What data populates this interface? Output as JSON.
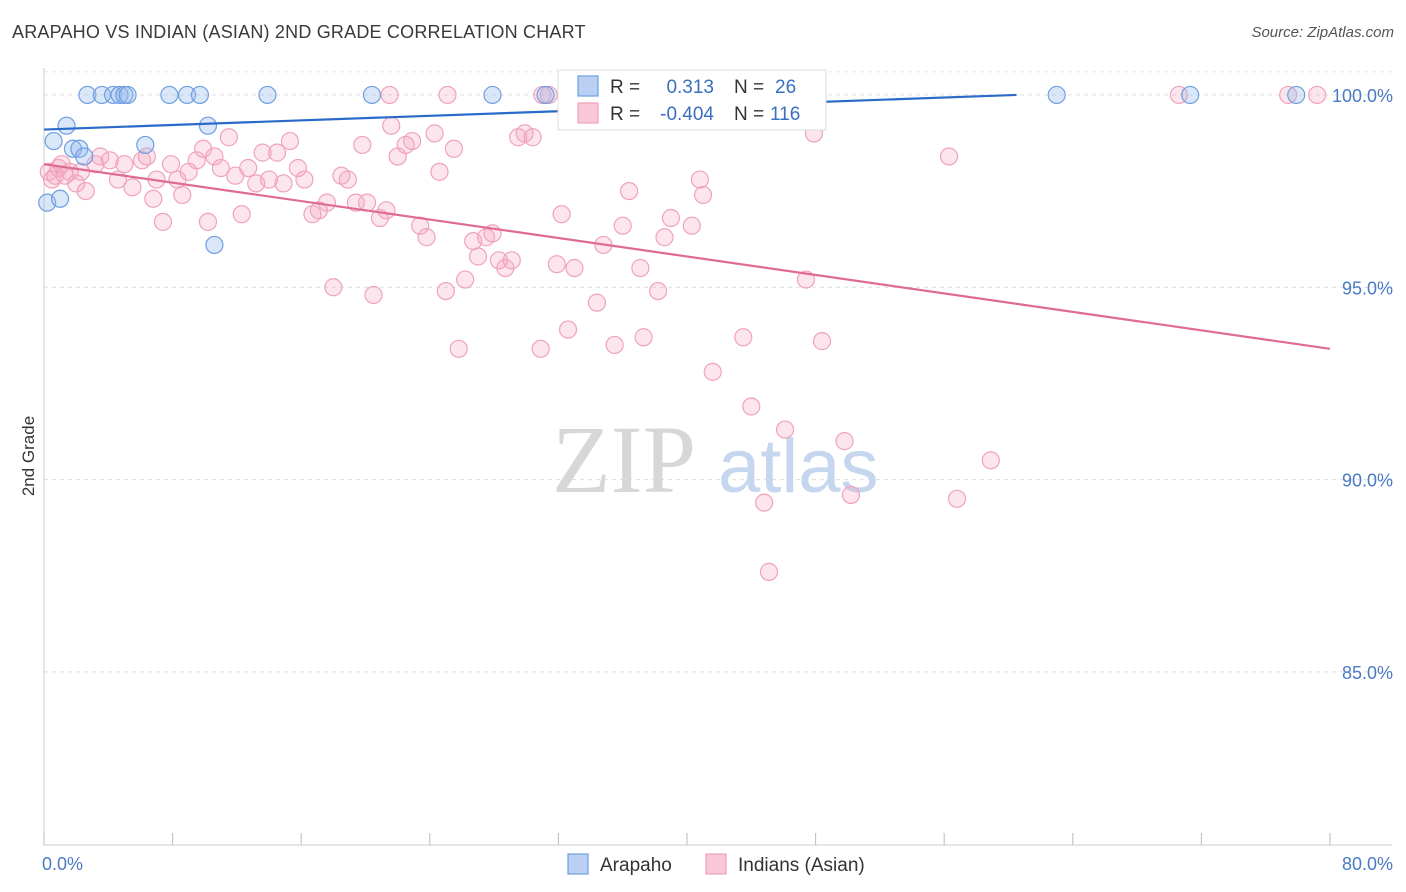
{
  "title": "ARAPAHO VS INDIAN (ASIAN) 2ND GRADE CORRELATION CHART",
  "source": "Source: ZipAtlas.com",
  "watermark": {
    "part1": "ZIP",
    "part2": "atlas"
  },
  "colors": {
    "arapaho": "#6f9fe0",
    "indian": "#f1a0bb",
    "arapaho_line": "#2a6ac8",
    "indian_line": "#e06a96"
  },
  "legend_top": {
    "rows": [
      {
        "r_label": "R =",
        "r_value": "0.313",
        "n_label": "N =",
        "n_value": "26"
      },
      {
        "r_label": "R =",
        "r_value": "-0.404",
        "n_label": "N =",
        "n_value": "116"
      }
    ]
  },
  "chart_data": {
    "type": "scatter",
    "title": "ARAPAHO VS INDIAN (ASIAN) 2ND GRADE CORRELATION CHART",
    "xlabel": "",
    "ylabel": "2nd Grade",
    "xlim": [
      0,
      80
    ],
    "ylim": [
      80.5,
      100.7
    ],
    "x_tick_labels": [
      {
        "value": 0,
        "label": "0.0%"
      },
      {
        "value": 80,
        "label": "80.0%"
      }
    ],
    "y_tick_labels": [
      {
        "value": 100,
        "label": "100.0%"
      },
      {
        "value": 95,
        "label": "95.0%"
      },
      {
        "value": 90,
        "label": "90.0%"
      },
      {
        "value": 85,
        "label": "85.0%"
      }
    ],
    "grid": true,
    "legend_position": "bottom-center",
    "series": [
      {
        "name": "Arapaho",
        "r": 0.313,
        "n": 26,
        "trend": {
          "x": [
            0,
            60.5
          ],
          "y": [
            99.1,
            100.0
          ]
        },
        "points": [
          [
            0.2,
            97.2
          ],
          [
            0.6,
            98.8
          ],
          [
            1.0,
            97.3
          ],
          [
            1.4,
            99.2
          ],
          [
            1.8,
            98.6
          ],
          [
            2.2,
            98.6
          ],
          [
            2.5,
            98.4
          ],
          [
            2.7,
            100.0
          ],
          [
            3.6,
            100.0
          ],
          [
            4.3,
            100.0
          ],
          [
            4.7,
            100.0
          ],
          [
            5.0,
            100.0
          ],
          [
            5.2,
            100.0
          ],
          [
            6.3,
            98.7
          ],
          [
            7.8,
            100.0
          ],
          [
            8.9,
            100.0
          ],
          [
            9.7,
            100.0
          ],
          [
            10.2,
            99.2
          ],
          [
            10.6,
            96.1
          ],
          [
            13.9,
            100.0
          ],
          [
            20.4,
            100.0
          ],
          [
            27.9,
            100.0
          ],
          [
            31.2,
            100.0
          ],
          [
            63.0,
            100.0
          ],
          [
            71.3,
            100.0
          ],
          [
            77.9,
            100.0
          ]
        ]
      },
      {
        "name": "Indians (Asian)",
        "r": -0.404,
        "n": 116,
        "trend": {
          "x": [
            0,
            80
          ],
          "y": [
            98.2,
            93.4
          ]
        },
        "points": [
          [
            0.3,
            98.0
          ],
          [
            0.5,
            97.8
          ],
          [
            0.7,
            97.9
          ],
          [
            0.9,
            98.1
          ],
          [
            1.1,
            98.2
          ],
          [
            1.3,
            97.9
          ],
          [
            1.6,
            98.0
          ],
          [
            2.0,
            97.7
          ],
          [
            2.3,
            98.0
          ],
          [
            2.6,
            97.5
          ],
          [
            3.2,
            98.2
          ],
          [
            3.5,
            98.4
          ],
          [
            4.1,
            98.3
          ],
          [
            4.6,
            97.8
          ],
          [
            5.0,
            98.2
          ],
          [
            5.5,
            97.6
          ],
          [
            6.1,
            98.3
          ],
          [
            6.4,
            98.4
          ],
          [
            6.8,
            97.3
          ],
          [
            7.0,
            97.8
          ],
          [
            7.4,
            96.7
          ],
          [
            7.9,
            98.2
          ],
          [
            8.3,
            97.8
          ],
          [
            8.6,
            97.4
          ],
          [
            9.0,
            98.0
          ],
          [
            9.5,
            98.3
          ],
          [
            9.9,
            98.6
          ],
          [
            10.2,
            96.7
          ],
          [
            10.6,
            98.4
          ],
          [
            11.0,
            98.1
          ],
          [
            11.5,
            98.9
          ],
          [
            11.9,
            97.9
          ],
          [
            12.3,
            96.9
          ],
          [
            12.7,
            98.1
          ],
          [
            13.2,
            97.7
          ],
          [
            13.6,
            98.5
          ],
          [
            14.0,
            97.8
          ],
          [
            14.5,
            98.5
          ],
          [
            14.9,
            97.7
          ],
          [
            15.3,
            98.8
          ],
          [
            15.8,
            98.1
          ],
          [
            16.2,
            97.8
          ],
          [
            16.7,
            96.9
          ],
          [
            17.1,
            97.0
          ],
          [
            17.6,
            97.2
          ],
          [
            18.0,
            95.0
          ],
          [
            18.5,
            97.9
          ],
          [
            18.9,
            97.8
          ],
          [
            19.4,
            97.2
          ],
          [
            19.8,
            98.7
          ],
          [
            20.1,
            97.2
          ],
          [
            20.5,
            94.8
          ],
          [
            20.9,
            96.8
          ],
          [
            21.3,
            97.0
          ],
          [
            21.6,
            99.2
          ],
          [
            22.0,
            98.4
          ],
          [
            22.5,
            98.7
          ],
          [
            22.9,
            98.8
          ],
          [
            23.4,
            96.6
          ],
          [
            23.8,
            96.3
          ],
          [
            24.3,
            99.0
          ],
          [
            24.6,
            98.0
          ],
          [
            25.0,
            94.9
          ],
          [
            25.5,
            98.6
          ],
          [
            25.8,
            93.4
          ],
          [
            26.2,
            95.2
          ],
          [
            26.7,
            96.2
          ],
          [
            27.0,
            95.8
          ],
          [
            27.5,
            96.3
          ],
          [
            27.9,
            96.4
          ],
          [
            28.3,
            95.7
          ],
          [
            28.7,
            95.5
          ],
          [
            29.1,
            95.7
          ],
          [
            29.5,
            98.9
          ],
          [
            29.9,
            99.0
          ],
          [
            30.4,
            98.9
          ],
          [
            30.9,
            93.4
          ],
          [
            31.4,
            100.0
          ],
          [
            31.9,
            95.6
          ],
          [
            32.2,
            96.9
          ],
          [
            32.6,
            93.9
          ],
          [
            33.0,
            95.5
          ],
          [
            34.4,
            94.6
          ],
          [
            34.8,
            96.1
          ],
          [
            35.5,
            93.5
          ],
          [
            36.0,
            96.6
          ],
          [
            36.4,
            97.5
          ],
          [
            37.1,
            95.5
          ],
          [
            37.3,
            93.7
          ],
          [
            38.2,
            94.9
          ],
          [
            38.6,
            96.3
          ],
          [
            39.0,
            96.8
          ],
          [
            40.3,
            96.6
          ],
          [
            40.8,
            97.8
          ],
          [
            41.0,
            97.4
          ],
          [
            41.6,
            92.8
          ],
          [
            43.5,
            93.7
          ],
          [
            44.0,
            91.9
          ],
          [
            44.8,
            89.4
          ],
          [
            45.1,
            87.6
          ],
          [
            46.1,
            91.3
          ],
          [
            47.4,
            95.2
          ],
          [
            47.9,
            100.0
          ],
          [
            48.4,
            93.6
          ],
          [
            49.8,
            91.0
          ],
          [
            50.2,
            89.6
          ],
          [
            56.3,
            98.4
          ],
          [
            56.8,
            89.5
          ],
          [
            58.9,
            90.5
          ],
          [
            70.6,
            100.0
          ],
          [
            77.4,
            100.0
          ],
          [
            79.2,
            100.0
          ],
          [
            25.1,
            100.0
          ],
          [
            31.0,
            100.0
          ],
          [
            47.9,
            99.0
          ],
          [
            21.5,
            100.0
          ]
        ]
      }
    ]
  }
}
